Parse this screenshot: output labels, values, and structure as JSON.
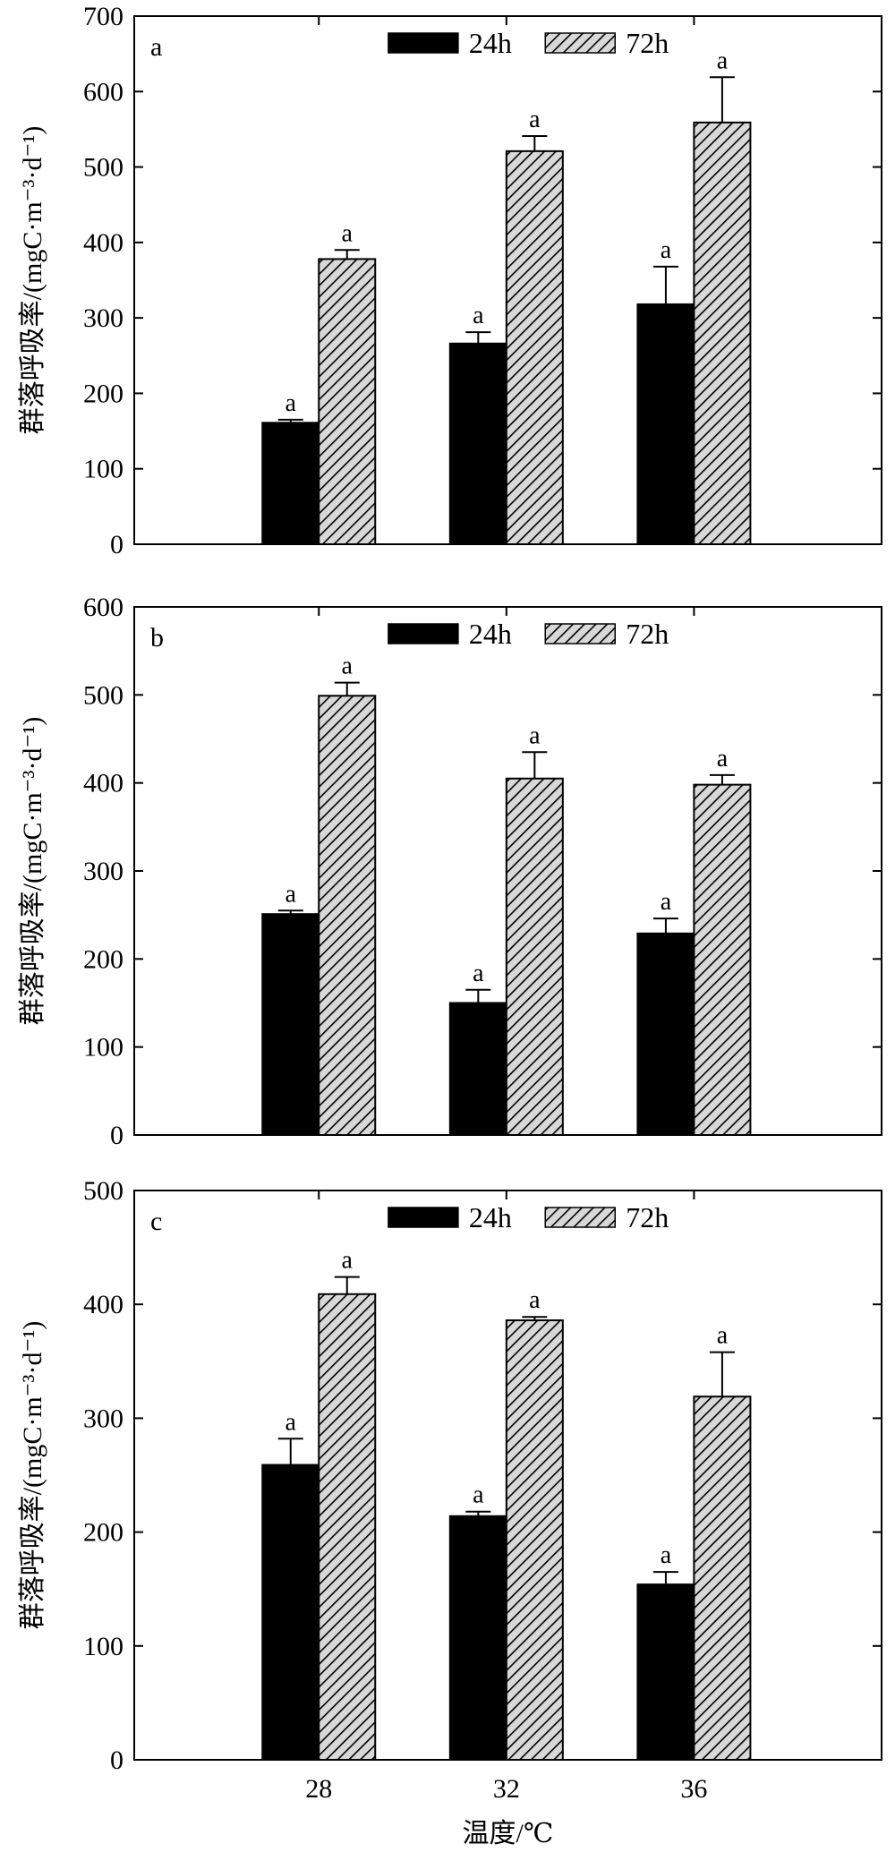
{
  "chart_data": [
    {
      "type": "bar",
      "panel_label": "a",
      "categories": [
        "28",
        "32",
        "36"
      ],
      "series": [
        {
          "name": "24h",
          "values": [
            161,
            266,
            318
          ],
          "errors": [
            4,
            15,
            50
          ],
          "significance": [
            "a",
            "a",
            "a"
          ],
          "fill": "solid-black"
        },
        {
          "name": "72h",
          "values": [
            378,
            521,
            559
          ],
          "errors": [
            12,
            20,
            60
          ],
          "significance": [
            "a",
            "a",
            "a"
          ],
          "fill": "diagonal-hatch"
        }
      ],
      "ylabel": "群落呼吸率/(mgC·m⁻³·d⁻¹)",
      "xlabel": "",
      "ylim": [
        0,
        700
      ],
      "yticks": [
        0,
        100,
        200,
        300,
        400,
        500,
        600,
        700
      ],
      "show_x_tick_labels": false,
      "legend_position": "top-center",
      "grid": false
    },
    {
      "type": "bar",
      "panel_label": "b",
      "categories": [
        "28",
        "32",
        "36"
      ],
      "series": [
        {
          "name": "24h",
          "values": [
            251,
            150,
            229
          ],
          "errors": [
            4,
            15,
            17
          ],
          "significance": [
            "a",
            "a",
            "a"
          ],
          "fill": "solid-black"
        },
        {
          "name": "72h",
          "values": [
            499,
            405,
            398
          ],
          "errors": [
            15,
            30,
            11
          ],
          "significance": [
            "a",
            "a",
            "a"
          ],
          "fill": "diagonal-hatch"
        }
      ],
      "ylabel": "群落呼吸率/(mgC·m⁻³·d⁻¹)",
      "xlabel": "",
      "ylim": [
        0,
        600
      ],
      "yticks": [
        0,
        100,
        200,
        300,
        400,
        500,
        600
      ],
      "show_x_tick_labels": false,
      "legend_position": "top-center",
      "grid": false
    },
    {
      "type": "bar",
      "panel_label": "c",
      "categories": [
        "28",
        "32",
        "36"
      ],
      "series": [
        {
          "name": "24h",
          "values": [
            259,
            214,
            154
          ],
          "errors": [
            23,
            4,
            11
          ],
          "significance": [
            "a",
            "a",
            "a"
          ],
          "fill": "solid-black"
        },
        {
          "name": "72h",
          "values": [
            409,
            386,
            319
          ],
          "errors": [
            15,
            3,
            39
          ],
          "significance": [
            "a",
            "a",
            "a"
          ],
          "fill": "diagonal-hatch"
        }
      ],
      "ylabel": "群落呼吸率/(mgC·m⁻³·d⁻¹)",
      "xlabel": "温度/℃",
      "ylim": [
        0,
        500
      ],
      "yticks": [
        0,
        100,
        200,
        300,
        400,
        500
      ],
      "show_x_tick_labels": true,
      "legend_position": "top-center",
      "grid": false
    }
  ],
  "colors": {
    "bar_24h": "#000000",
    "bar_72h_background": "#d8d8d8",
    "bar_72h_hatch": "#000000",
    "axes": "#000000"
  }
}
